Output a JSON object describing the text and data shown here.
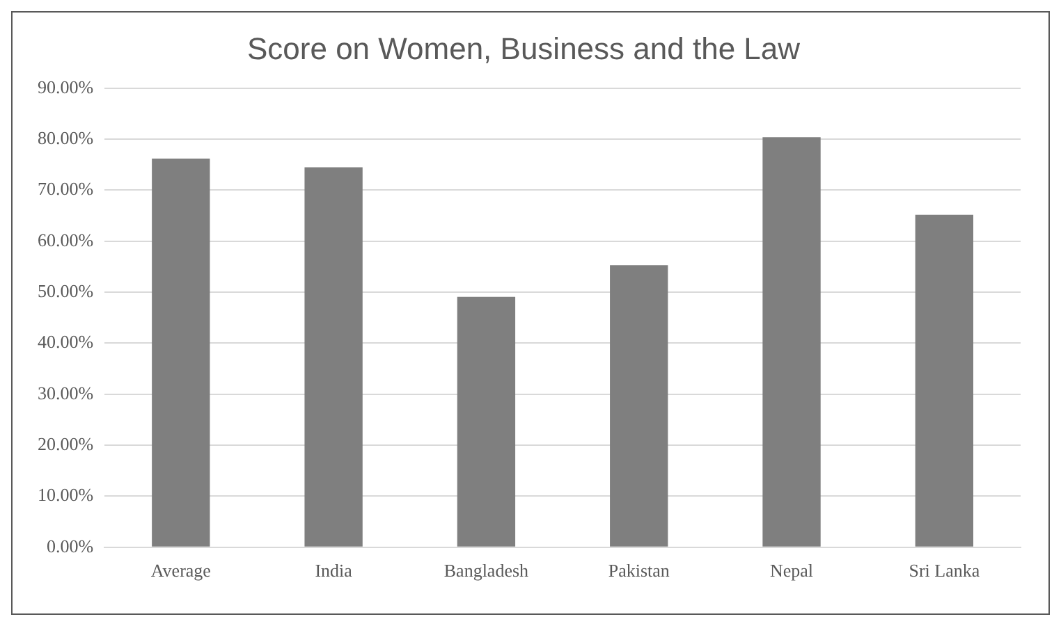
{
  "chart_data": {
    "type": "bar",
    "title": "Score on Women, Business and the Law",
    "categories": [
      "Average",
      "India",
      "Bangladesh",
      "Pakistan",
      "Nepal",
      "Sri Lanka"
    ],
    "values": [
      76.2,
      74.5,
      49.1,
      55.3,
      80.4,
      65.2
    ],
    "color": "#7f7f7f",
    "ylim": [
      0,
      90
    ],
    "yticks": [
      {
        "value": 0,
        "label": "0.00%"
      },
      {
        "value": 10,
        "label": "10.00%"
      },
      {
        "value": 20,
        "label": "20.00%"
      },
      {
        "value": 30,
        "label": "30.00%"
      },
      {
        "value": 40,
        "label": "40.00%"
      },
      {
        "value": 50,
        "label": "50.00%"
      },
      {
        "value": 60,
        "label": "60.00%"
      },
      {
        "value": 70,
        "label": "70.00%"
      },
      {
        "value": 80,
        "label": "80.00%"
      },
      {
        "value": 90,
        "label": "90.00%"
      }
    ],
    "grid": "y"
  }
}
